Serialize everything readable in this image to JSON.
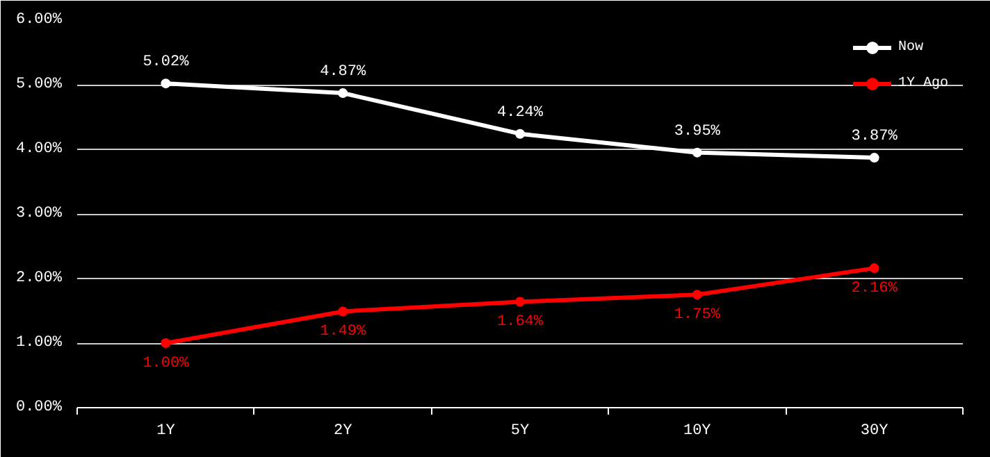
{
  "chart_data": {
    "type": "line",
    "categories": [
      "1Y",
      "2Y",
      "5Y",
      "10Y",
      "30Y"
    ],
    "series": [
      {
        "name": "Now",
        "color": "#ffffff",
        "values": [
          5.02,
          4.87,
          4.24,
          3.95,
          3.87
        ]
      },
      {
        "name": "1Y Ago",
        "color": "#ff0000",
        "values": [
          1.0,
          1.49,
          1.64,
          1.75,
          2.16
        ]
      }
    ],
    "ylim": [
      0,
      6
    ],
    "yticks": [
      {
        "value": 0,
        "label": "0.00%"
      },
      {
        "value": 1,
        "label": "1.00%"
      },
      {
        "value": 2,
        "label": "2.00%"
      },
      {
        "value": 3,
        "label": "3.00%"
      },
      {
        "value": 4,
        "label": "4.00%"
      },
      {
        "value": 5,
        "label": "5.00%"
      },
      {
        "value": 6,
        "label": "6.00%"
      }
    ],
    "value_labels": [
      [
        "5.02%",
        "4.87%",
        "4.24%",
        "3.95%",
        "3.87%"
      ],
      [
        "1.00%",
        "1.49%",
        "1.64%",
        "1.75%",
        "2.16%"
      ]
    ],
    "grid": "y",
    "legend": "top right",
    "marker": "circle",
    "line_style": "solid"
  }
}
